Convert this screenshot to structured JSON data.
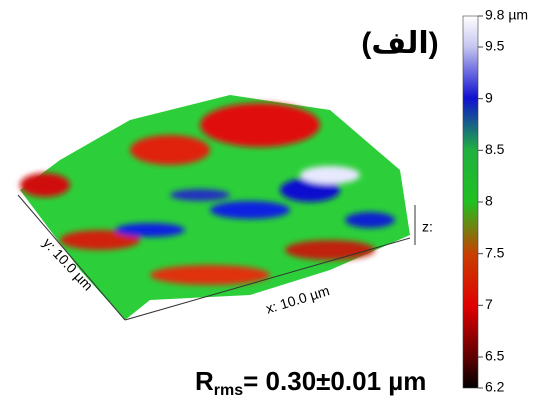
{
  "panel_label": "(الف)",
  "colorbar": {
    "lim": [
      6.2,
      9.8
    ],
    "ticks": [
      {
        "value": 9.8,
        "label": "9.8 µm"
      },
      9.5,
      9.0,
      8.5,
      8.0,
      7.5,
      7.0,
      6.5,
      6.2
    ]
  },
  "axes": {
    "x_label": "x: 10.0 µm",
    "y_label": "y: 10.0 µm",
    "z_label": "z:"
  },
  "roughness": {
    "symbol": "R",
    "subscript": "rms",
    "text": "= 0.30±0.01 µm"
  }
}
